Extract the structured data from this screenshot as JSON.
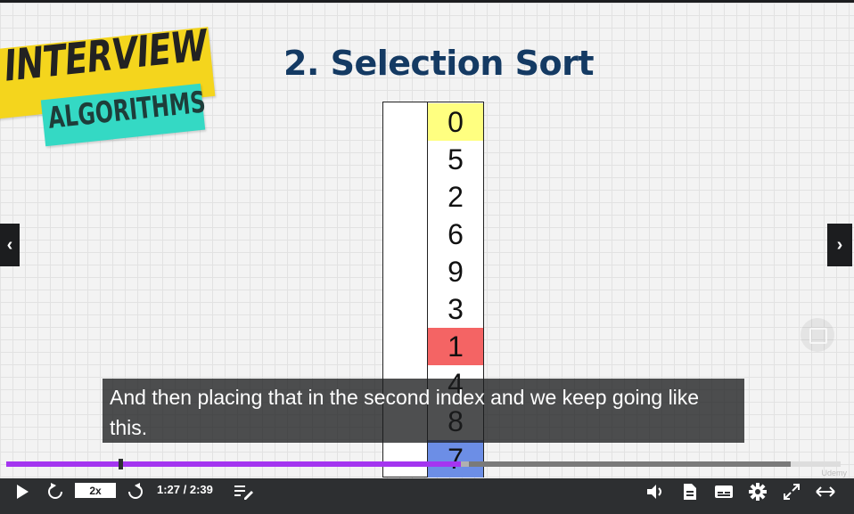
{
  "logo": {
    "line1": "INTERVIEW",
    "line2": "ALGORITHMS"
  },
  "slide": {
    "title": "2. Selection Sort",
    "array": [
      {
        "value": "0",
        "bg": "#ffff80"
      },
      {
        "value": "5",
        "bg": "#ffffff"
      },
      {
        "value": "2",
        "bg": "#ffffff"
      },
      {
        "value": "6",
        "bg": "#ffffff"
      },
      {
        "value": "9",
        "bg": "#ffffff"
      },
      {
        "value": "3",
        "bg": "#ffffff"
      },
      {
        "value": "1",
        "bg": "#f46464"
      },
      {
        "value": "4",
        "bg": "#ffffff"
      },
      {
        "value": "8",
        "bg": "#ffffff"
      },
      {
        "value": "7",
        "bg": "#6c8ee6"
      }
    ]
  },
  "caption": {
    "text": "And then placing that in the second index and we keep going like this."
  },
  "watermark": "Udemy",
  "nav": {
    "prev_icon": "chevron-left-icon",
    "next_icon": "chevron-right-icon",
    "prev_glyph": "‹",
    "next_glyph": "›"
  },
  "player": {
    "progress_fraction": 0.58,
    "buffered_fraction": 0.59,
    "speed": "2x",
    "time": "1:27 / 2:39",
    "accent": "#a435f0"
  }
}
